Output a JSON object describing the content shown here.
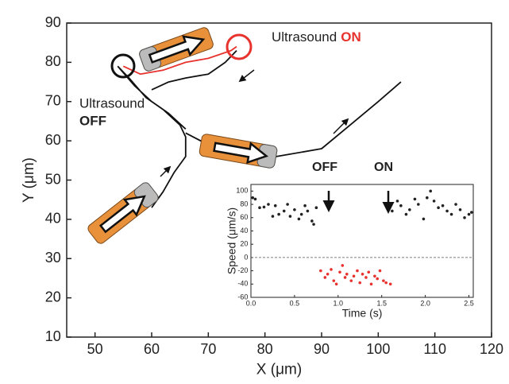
{
  "chart_data": [
    {
      "type": "line",
      "xlabel": "X (μm)",
      "ylabel": "Y (μm)",
      "xlim": [
        45,
        120
      ],
      "ylim": [
        10,
        90
      ],
      "xticks": [
        50,
        60,
        70,
        80,
        90,
        100,
        110,
        120
      ],
      "yticks": [
        10,
        20,
        30,
        40,
        50,
        60,
        70,
        80,
        90
      ],
      "annotations": [
        "Ultrasound",
        "ON",
        "Ultrasound",
        "OFF"
      ],
      "series": [
        {
          "color": "#111111",
          "x": [
            60,
            62,
            64,
            66,
            66,
            65,
            62,
            59,
            56,
            54,
            null,
            54,
            57,
            60,
            63,
            66,
            null,
            60,
            63,
            66,
            70,
            73,
            75,
            null,
            66,
            70,
            76,
            82,
            90,
            95,
            100,
            104
          ],
          "values": [
            43,
            47,
            52,
            56,
            61,
            64,
            68,
            71,
            76,
            79,
            null,
            79,
            74,
            70,
            67,
            63,
            null,
            73,
            75,
            76,
            77,
            80,
            83,
            null,
            62,
            59,
            56,
            56,
            58,
            64,
            70,
            75
          ]
        },
        {
          "color": "#e8322e",
          "x": [
            55,
            58,
            62,
            66,
            70,
            74,
            75
          ],
          "values": [
            79,
            77,
            78,
            80,
            81,
            83,
            84
          ]
        }
      ]
    },
    {
      "type": "scatter",
      "xlabel": "Time (s)",
      "ylabel": "Speed (μm/s)",
      "xlim": [
        0,
        2.55
      ],
      "ylim": [
        -60,
        110
      ],
      "xticks": [
        {
          "value": 0,
          "label": "0.0"
        },
        {
          "value": 0.5,
          "label": "0.5"
        },
        {
          "value": 1,
          "label": "1.0"
        },
        {
          "value": 1.5,
          "label": "1.5"
        },
        {
          "value": 2,
          "label": "2.0"
        },
        {
          "value": 2.5,
          "label": "2.5"
        }
      ],
      "yticks": [
        -60,
        -40,
        -20,
        0,
        20,
        40,
        60,
        80,
        100
      ],
      "reference_line": 0,
      "annotations": [
        "OFF",
        "ON"
      ],
      "series": [
        {
          "color": "#222222",
          "x": [
            0.02,
            0.05,
            0.1,
            0.15,
            0.2,
            0.25,
            0.28,
            0.32,
            0.38,
            0.42,
            0.45,
            0.5,
            0.55,
            0.58,
            0.62,
            0.65,
            0.7,
            0.72,
            0.75,
            1.62,
            1.68,
            1.72,
            1.78,
            1.82,
            1.88,
            1.92,
            1.98,
            2.02,
            2.06,
            2.1,
            2.15,
            2.2,
            2.25,
            2.3,
            2.35,
            2.4,
            2.45,
            2.5,
            2.53
          ],
          "values": [
            90,
            88,
            75,
            76,
            80,
            62,
            78,
            65,
            70,
            80,
            62,
            72,
            58,
            65,
            78,
            70,
            55,
            50,
            75,
            70,
            85,
            78,
            65,
            72,
            88,
            80,
            58,
            90,
            100,
            85,
            75,
            78,
            70,
            65,
            80,
            72,
            60,
            65,
            68
          ]
        },
        {
          "color": "#e8322e",
          "x": [
            0.8,
            0.85,
            0.88,
            0.92,
            0.95,
            0.98,
            1.02,
            1.05,
            1.08,
            1.1,
            1.15,
            1.18,
            1.22,
            1.25,
            1.28,
            1.32,
            1.35,
            1.38,
            1.42,
            1.45,
            1.48,
            1.52,
            1.55,
            1.6
          ],
          "values": [
            -20,
            -30,
            -25,
            -18,
            -35,
            -40,
            -22,
            -12,
            -30,
            -25,
            -35,
            -28,
            -20,
            -38,
            -25,
            -30,
            -22,
            -40,
            -28,
            -32,
            -20,
            -35,
            -38,
            -40
          ]
        }
      ]
    }
  ]
}
